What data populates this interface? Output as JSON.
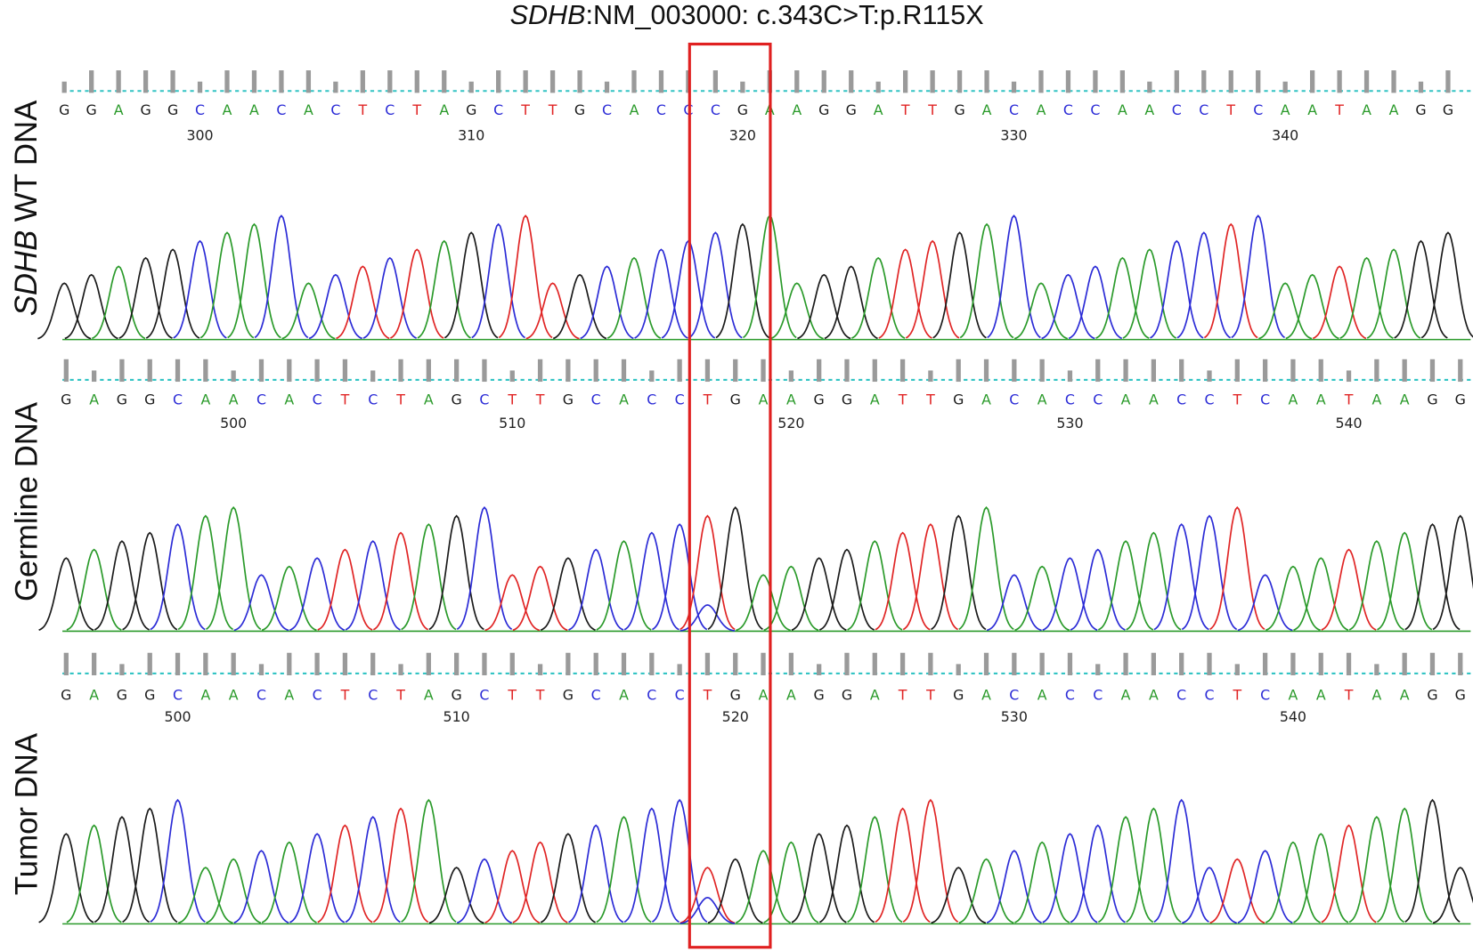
{
  "title": {
    "gene": "SDHB",
    "rest": ":NM_003000: c.343C>T:p.R115X"
  },
  "panels": [
    {
      "label_italic": "SDHB",
      "label": "WT DNA",
      "bases": [
        "G",
        "G",
        "A",
        "G",
        "G",
        "C",
        "A",
        "A",
        "C",
        "A",
        "C",
        "T",
        "C",
        "T",
        "A",
        "G",
        "C",
        "T",
        "T",
        "G",
        "C",
        "A",
        "C",
        "C",
        "C",
        "G",
        "A",
        "A",
        "G",
        "G",
        "A",
        "T",
        "T",
        "G",
        "A",
        "C",
        "A",
        "C",
        "C",
        "A",
        "A",
        "C",
        "C",
        "T",
        "C",
        "A",
        "A",
        "T",
        "A",
        "A",
        "G",
        "G"
      ],
      "positions": [
        "300",
        "310",
        "320",
        "330",
        "340"
      ]
    },
    {
      "label": "Germline DNA",
      "bases": [
        "G",
        "A",
        "G",
        "G",
        "C",
        "A",
        "A",
        "C",
        "A",
        "C",
        "T",
        "C",
        "T",
        "A",
        "G",
        "C",
        "T",
        "T",
        "G",
        "C",
        "A",
        "C",
        "C",
        "T",
        "G",
        "A",
        "A",
        "G",
        "G",
        "A",
        "T",
        "T",
        "G",
        "A",
        "C",
        "A",
        "C",
        "C",
        "A",
        "A",
        "C",
        "C",
        "T",
        "C",
        "A",
        "A",
        "T",
        "A",
        "A",
        "G",
        "G"
      ],
      "positions": [
        "500",
        "510",
        "520",
        "530",
        "540"
      ]
    },
    {
      "label": "Tumor DNA",
      "bases": [
        "G",
        "A",
        "G",
        "G",
        "C",
        "A",
        "A",
        "C",
        "A",
        "C",
        "T",
        "C",
        "T",
        "A",
        "G",
        "C",
        "T",
        "T",
        "G",
        "C",
        "A",
        "C",
        "C",
        "T",
        "G",
        "A",
        "A",
        "G",
        "G",
        "A",
        "T",
        "T",
        "G",
        "A",
        "C",
        "A",
        "C",
        "C",
        "A",
        "A",
        "C",
        "C",
        "T",
        "C",
        "A",
        "A",
        "T",
        "A",
        "A",
        "G",
        "G"
      ],
      "positions": [
        "500",
        "510",
        "520",
        "530",
        "540"
      ]
    }
  ]
}
